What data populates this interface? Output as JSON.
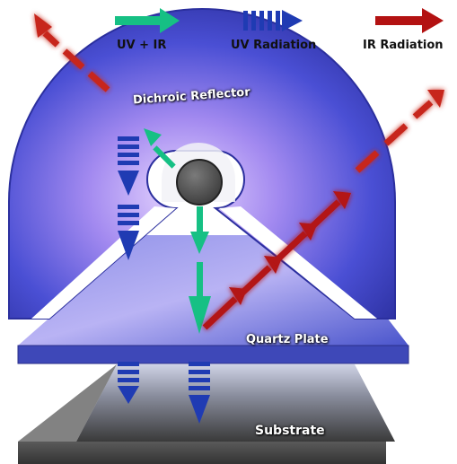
{
  "legend": {
    "uv_ir_label": "UV + IR",
    "uv_label": "UV Radiation",
    "ir_label": "IR Radiation"
  },
  "labels": {
    "reflector": "Dichroic Reflector",
    "quartz": "Quartz Plate",
    "substrate": "Substrate"
  },
  "colors": {
    "uv_ir": "#16c084",
    "uv": "#1f3bb3",
    "ir": "#b31212",
    "reflector": "#5b57d6",
    "quartz": "#6a78e0",
    "substrate": "#444444",
    "lamp": "#555555"
  },
  "icons": {
    "uv_ir": "green-arrow-icon",
    "uv": "blue-dashed-arrow-icon",
    "ir": "red-arrow-icon"
  }
}
